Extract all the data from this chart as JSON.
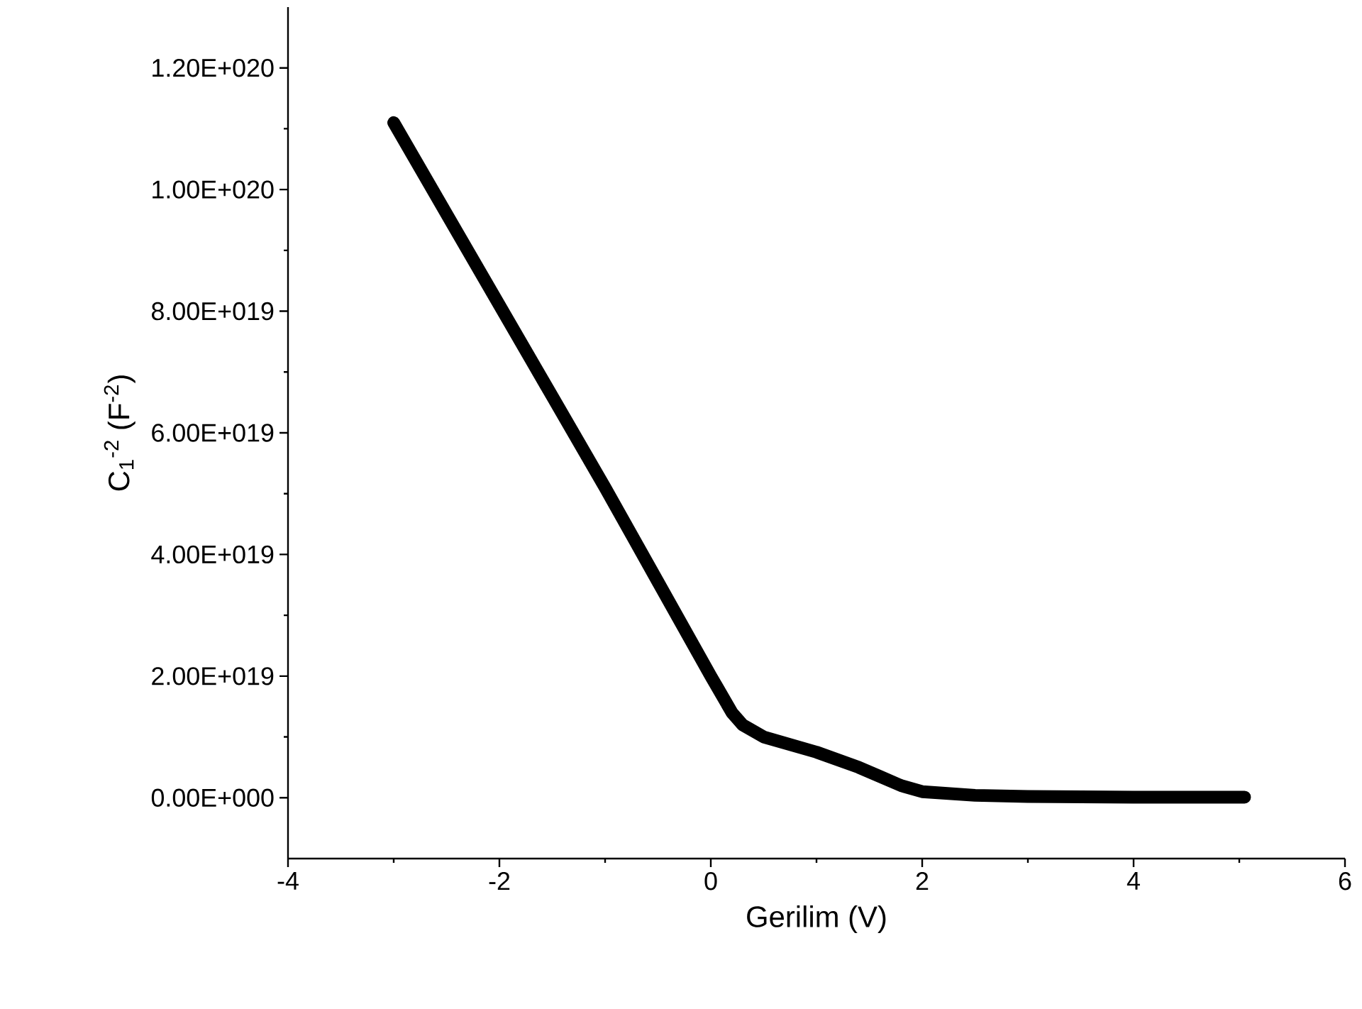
{
  "chart_data": {
    "type": "line",
    "xlabel": "Gerilim (V)",
    "ylabel": "C$_{1}$$^{-2}$ (F$^{-2}$)",
    "x": [
      -3,
      -2.5,
      -2,
      -1.5,
      -1,
      -0.5,
      0,
      0.2,
      0.3,
      0.5,
      1,
      1.4,
      1.6,
      1.8,
      2,
      2.5,
      3,
      4,
      5.05
    ],
    "values": [
      1.11e+20,
      9.6e+19,
      8.1e+19,
      6.6e+19,
      5.1e+19,
      3.55e+19,
      2e+19,
      1.4e+19,
      1.2e+19,
      1e+19,
      7.5e+18,
      5e+18,
      3.5e+18,
      2e+18,
      1e+18,
      4e+17,
      2e+17,
      1e+17,
      1e+17
    ],
    "color": "#000000",
    "xlim": [
      -4,
      6
    ],
    "ylim": [
      -1e+19,
      1.3e+20
    ],
    "xticks": [
      -4,
      -2,
      0,
      2,
      4,
      6
    ],
    "yticks": [
      {
        "value": 0,
        "label": "0.00E+000"
      },
      {
        "value": 2e+19,
        "label": "2.00E+019"
      },
      {
        "value": 4e+19,
        "label": "4.00E+019"
      },
      {
        "value": 6e+19,
        "label": "6.00E+019"
      },
      {
        "value": 8e+19,
        "label": "8.00E+019"
      },
      {
        "value": 1e+20,
        "label": "1.00E+020"
      },
      {
        "value": 1.2e+20,
        "label": "1.20E+020"
      }
    ]
  }
}
